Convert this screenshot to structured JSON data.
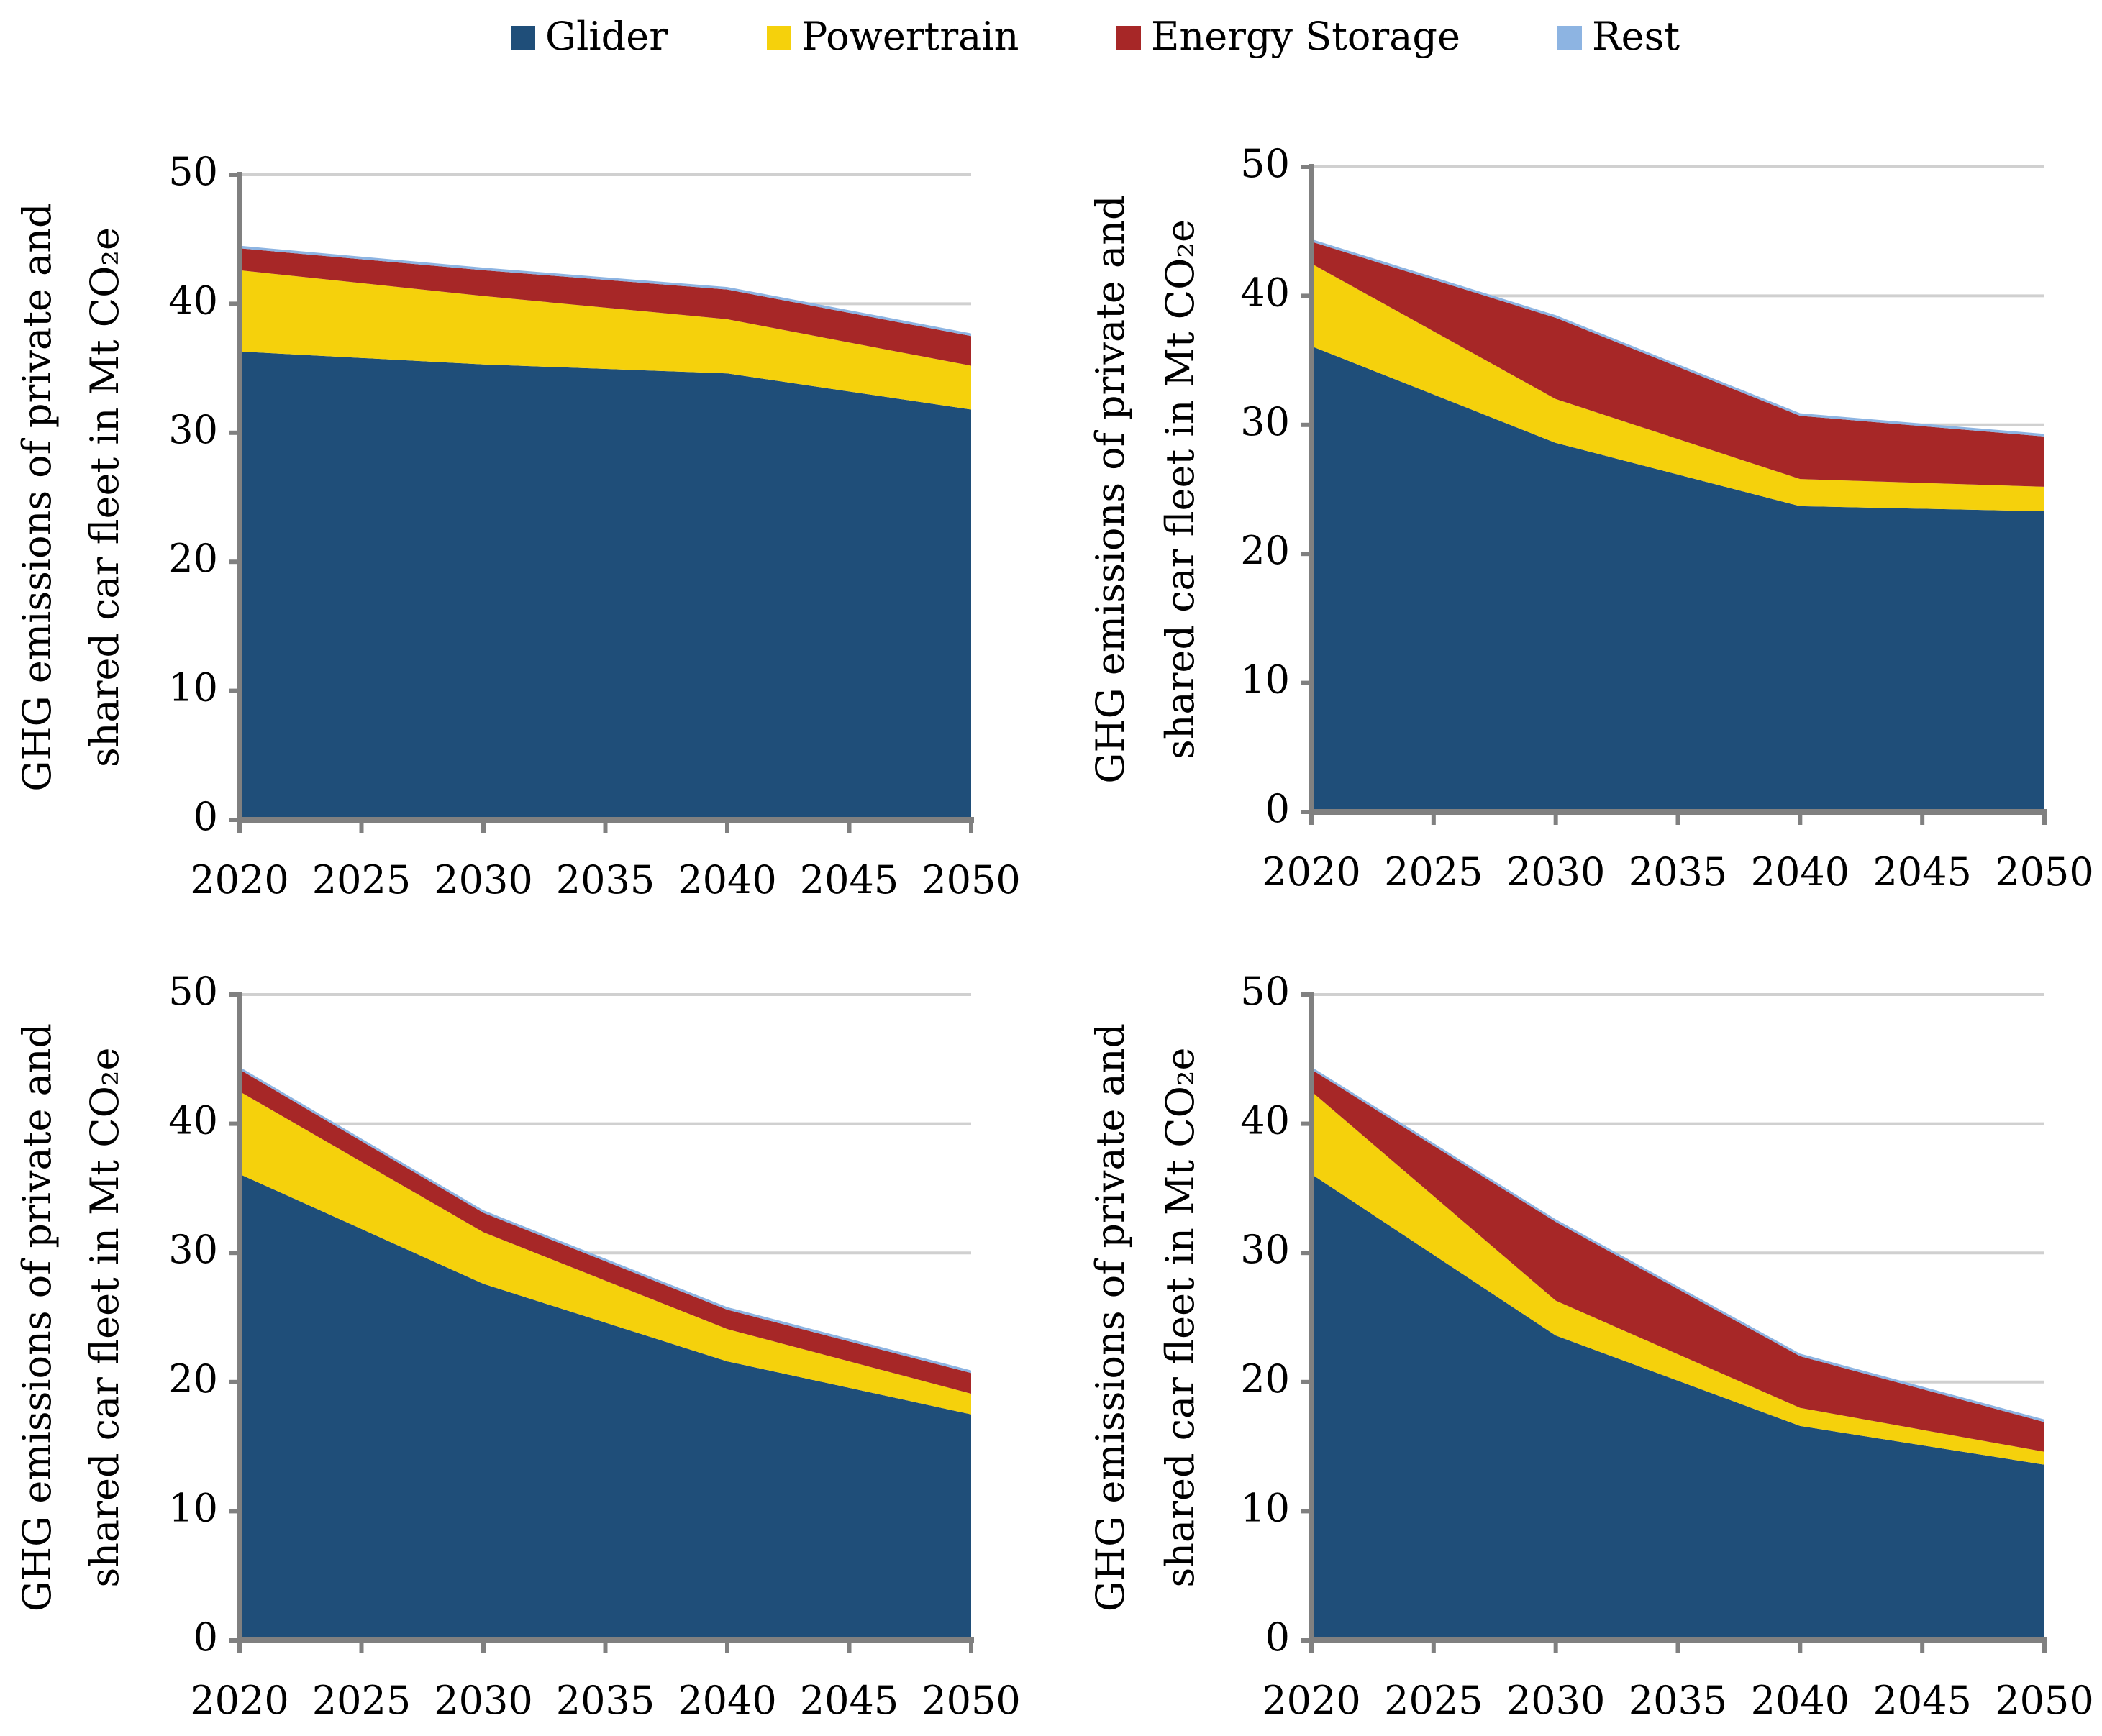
{
  "chart_data": [
    {
      "type": "stacked_area",
      "x": [
        2020,
        2030,
        2040,
        2050
      ],
      "xlim": [
        2020,
        2050
      ],
      "xticks": [
        2020,
        2025,
        2030,
        2035,
        2040,
        2045,
        2050
      ],
      "ylim": [
        0,
        50
      ],
      "yticks": [
        0,
        10,
        20,
        30,
        40,
        50
      ],
      "grid": true,
      "ylabel": [
        "GHG emissions of private and",
        "shared car fleet in Mt CO₂e"
      ],
      "series": [
        {
          "name": "Glider",
          "color": "#1f4e79",
          "values": [
            36.3,
            35.3,
            34.6,
            31.8
          ]
        },
        {
          "name": "Powertrain",
          "color": "#f5d10c",
          "values": [
            6.3,
            5.3,
            4.2,
            3.4
          ]
        },
        {
          "name": "Energy Storage",
          "color": "#a72727",
          "values": [
            1.7,
            2.0,
            2.3,
            2.3
          ]
        },
        {
          "name": "Rest",
          "color": "#8db4e2",
          "values": [
            0.2,
            0.2,
            0.2,
            0.2
          ]
        }
      ]
    },
    {
      "type": "stacked_area",
      "x": [
        2020,
        2030,
        2040,
        2050
      ],
      "xlim": [
        2020,
        2050
      ],
      "xticks": [
        2020,
        2025,
        2030,
        2035,
        2040,
        2045,
        2050
      ],
      "ylim": [
        0,
        50
      ],
      "yticks": [
        0,
        10,
        20,
        30,
        40,
        50
      ],
      "grid": true,
      "ylabel": [
        "GHG emissions of private and",
        "shared car fleet in Mt CO₂e"
      ],
      "series": [
        {
          "name": "Glider",
          "color": "#1f4e79",
          "values": [
            36.1,
            28.6,
            23.7,
            23.3
          ]
        },
        {
          "name": "Powertrain",
          "color": "#f5d10c",
          "values": [
            6.4,
            3.4,
            2.1,
            1.9
          ]
        },
        {
          "name": "Energy Storage",
          "color": "#a72727",
          "values": [
            1.7,
            6.3,
            4.9,
            3.9
          ]
        },
        {
          "name": "Rest",
          "color": "#8db4e2",
          "values": [
            0.2,
            0.2,
            0.2,
            0.2
          ]
        }
      ]
    },
    {
      "type": "stacked_area",
      "x": [
        2020,
        2030,
        2040,
        2050
      ],
      "xlim": [
        2020,
        2050
      ],
      "xticks": [
        2020,
        2025,
        2030,
        2035,
        2040,
        2045,
        2050
      ],
      "ylim": [
        0,
        50
      ],
      "yticks": [
        0,
        10,
        20,
        30,
        40,
        50
      ],
      "grid": true,
      "ylabel": [
        "GHG emissions of private and",
        "shared car fleet in Mt CO₂e"
      ],
      "series": [
        {
          "name": "Glider",
          "color": "#1f4e79",
          "values": [
            36.1,
            27.6,
            21.6,
            17.5
          ]
        },
        {
          "name": "Powertrain",
          "color": "#f5d10c",
          "values": [
            6.4,
            4.0,
            2.5,
            1.6
          ]
        },
        {
          "name": "Energy Storage",
          "color": "#a72727",
          "values": [
            1.7,
            1.5,
            1.5,
            1.6
          ]
        },
        {
          "name": "Rest",
          "color": "#8db4e2",
          "values": [
            0.2,
            0.2,
            0.2,
            0.2
          ]
        }
      ]
    },
    {
      "type": "stacked_area",
      "x": [
        2020,
        2030,
        2040,
        2050
      ],
      "xlim": [
        2020,
        2050
      ],
      "xticks": [
        2020,
        2025,
        2030,
        2035,
        2040,
        2045,
        2050
      ],
      "ylim": [
        0,
        50
      ],
      "yticks": [
        0,
        10,
        20,
        30,
        40,
        50
      ],
      "grid": true,
      "ylabel": [
        "GHG emissions of private and",
        "shared car fleet in Mt CO₂e"
      ],
      "series": [
        {
          "name": "Glider",
          "color": "#1f4e79",
          "values": [
            36.1,
            23.6,
            16.6,
            13.6
          ]
        },
        {
          "name": "Powertrain",
          "color": "#f5d10c",
          "values": [
            6.4,
            2.7,
            1.4,
            1.0
          ]
        },
        {
          "name": "Energy Storage",
          "color": "#a72727",
          "values": [
            1.7,
            6.1,
            4.0,
            2.3
          ]
        },
        {
          "name": "Rest",
          "color": "#8db4e2",
          "values": [
            0.2,
            0.2,
            0.2,
            0.2
          ]
        }
      ]
    }
  ]
}
